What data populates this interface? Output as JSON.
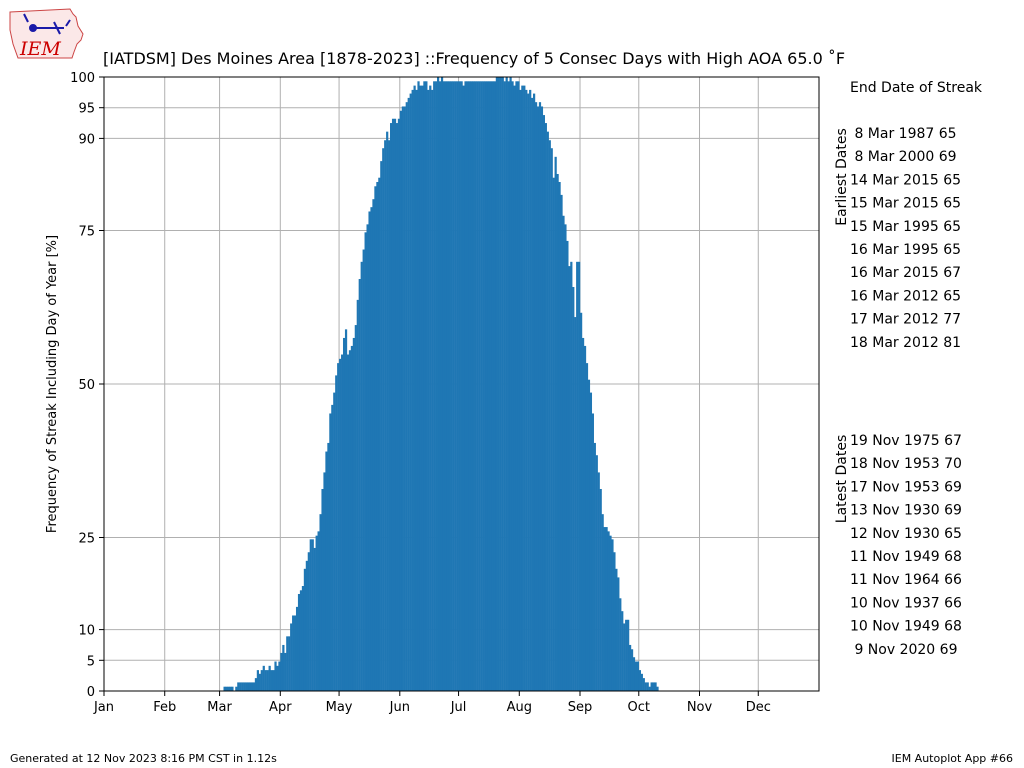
{
  "logo": {
    "text": "IEM"
  },
  "footer": {
    "generated": "Generated at 12 Nov 2023 8:16 PM CST in 1.12s",
    "app": "IEM Autoplot App #66"
  },
  "side_panel": {
    "heading": "End Date of Streak",
    "earliest_label": "Earliest Dates",
    "latest_label": "Latest Dates",
    "earliest": [
      " 8 Mar 1987 65",
      " 8 Mar 2000 69",
      "14 Mar 2015 65",
      "15 Mar 2015 65",
      "15 Mar 1995 65",
      "16 Mar 1995 65",
      "16 Mar 2015 67",
      "16 Mar 2012 65",
      "17 Mar 2012 77",
      "18 Mar 2012 81"
    ],
    "latest": [
      "19 Nov 1975 67",
      "18 Nov 1953 70",
      "17 Nov 1953 69",
      "13 Nov 1930 69",
      "12 Nov 1930 65",
      "11 Nov 1949 68",
      "11 Nov 1964 66",
      "10 Nov 1937 66",
      "10 Nov 1949 68",
      " 9 Nov 2020 69"
    ]
  },
  "chart_data": {
    "type": "bar",
    "title": "[IATDSM] Des Moines Area [1878-2023] ::Frequency of 5 Consec Days with High AOA 65.0 ˚F",
    "xlabel": "",
    "ylabel": "Frequency of Streak Including Day of Year [%]",
    "x_unit": "day of year",
    "xlim": [
      1,
      366
    ],
    "ylim": [
      0,
      100
    ],
    "yticks": [
      0,
      5,
      10,
      25,
      50,
      75,
      90,
      95,
      100
    ],
    "xticks": [
      {
        "label": "Jan",
        "day": 1
      },
      {
        "label": "Feb",
        "day": 32
      },
      {
        "label": "Mar",
        "day": 60
      },
      {
        "label": "Apr",
        "day": 91
      },
      {
        "label": "May",
        "day": 121
      },
      {
        "label": "Jun",
        "day": 152
      },
      {
        "label": "Jul",
        "day": 182
      },
      {
        "label": "Aug",
        "day": 213
      },
      {
        "label": "Sep",
        "day": 244
      },
      {
        "label": "Oct",
        "day": 274
      },
      {
        "label": "Nov",
        "day": 305
      },
      {
        "label": "Dec",
        "day": 335
      }
    ],
    "grid": true,
    "bar_color": "#1f77b4",
    "start_day": 62,
    "values": [
      0.7,
      0.7,
      0.7,
      0.7,
      0.7,
      0,
      0.7,
      1.4,
      1.4,
      1.4,
      1.4,
      1.4,
      1.4,
      1.4,
      1.4,
      1.4,
      2.1,
      3.4,
      2.8,
      3.4,
      4.1,
      3.4,
      3.4,
      4.1,
      3.4,
      3.4,
      4.8,
      4.1,
      4.8,
      6.2,
      7.5,
      6.2,
      8.9,
      8.9,
      11.0,
      12.3,
      12.3,
      13.7,
      15.8,
      16.4,
      17.1,
      19.9,
      21.2,
      22.6,
      24.7,
      24.7,
      23.3,
      25.3,
      26.0,
      28.8,
      32.9,
      35.6,
      39.0,
      40.4,
      45.2,
      46.6,
      48.6,
      51.4,
      53.4,
      54.1,
      54.8,
      57.5,
      58.9,
      54.8,
      55.5,
      56.2,
      57.5,
      59.6,
      63.7,
      67.1,
      69.9,
      71.9,
      74.7,
      76.0,
      78.1,
      78.8,
      80.1,
      82.2,
      82.9,
      83.6,
      86.3,
      88.4,
      89.7,
      91.1,
      89.7,
      92.5,
      93.2,
      93.2,
      92.5,
      93.2,
      94.5,
      95.2,
      95.2,
      95.9,
      96.6,
      97.3,
      97.9,
      98.6,
      97.9,
      99.3,
      98.6,
      98.6,
      99.3,
      99.3,
      97.9,
      98.6,
      97.9,
      99.3,
      99.3,
      100,
      99.3,
      100,
      99.3,
      99.3,
      99.3,
      99.3,
      99.3,
      99.3,
      99.3,
      99.3,
      99.3,
      99.3,
      98.6,
      99.3,
      99.3,
      99.3,
      99.3,
      99.3,
      99.3,
      99.3,
      99.3,
      99.3,
      99.3,
      99.3,
      99.3,
      99.3,
      99.3,
      99.3,
      99.3,
      100,
      100,
      100,
      100,
      99.3,
      100,
      99.3,
      100,
      99.3,
      98.6,
      99.3,
      99.3,
      97.9,
      98.6,
      98.6,
      97.9,
      97.3,
      97.9,
      96.6,
      97.3,
      95.9,
      95.2,
      95.9,
      95.2,
      93.8,
      92.5,
      91.1,
      89.7,
      88.4,
      83.6,
      87.0,
      84.2,
      82.9,
      80.8,
      77.4,
      76.0,
      73.3,
      69.2,
      69.9,
      65.8,
      60.9,
      69.9,
      69.9,
      61.6,
      57.5,
      56.2,
      53.4,
      50.7,
      48.6,
      45.2,
      40.4,
      38.4,
      35.6,
      32.9,
      28.8,
      26.7,
      26.7,
      26.0,
      25.3,
      24.7,
      22.6,
      19.9,
      18.5,
      15.1,
      13.0,
      11.0,
      11.6,
      11.6,
      7.5,
      6.8,
      5.5,
      4.8,
      4.8,
      3.4,
      2.8,
      2.1,
      1.4,
      1.4,
      0.7,
      1.4,
      1.4,
      1.4,
      0.7
    ]
  }
}
